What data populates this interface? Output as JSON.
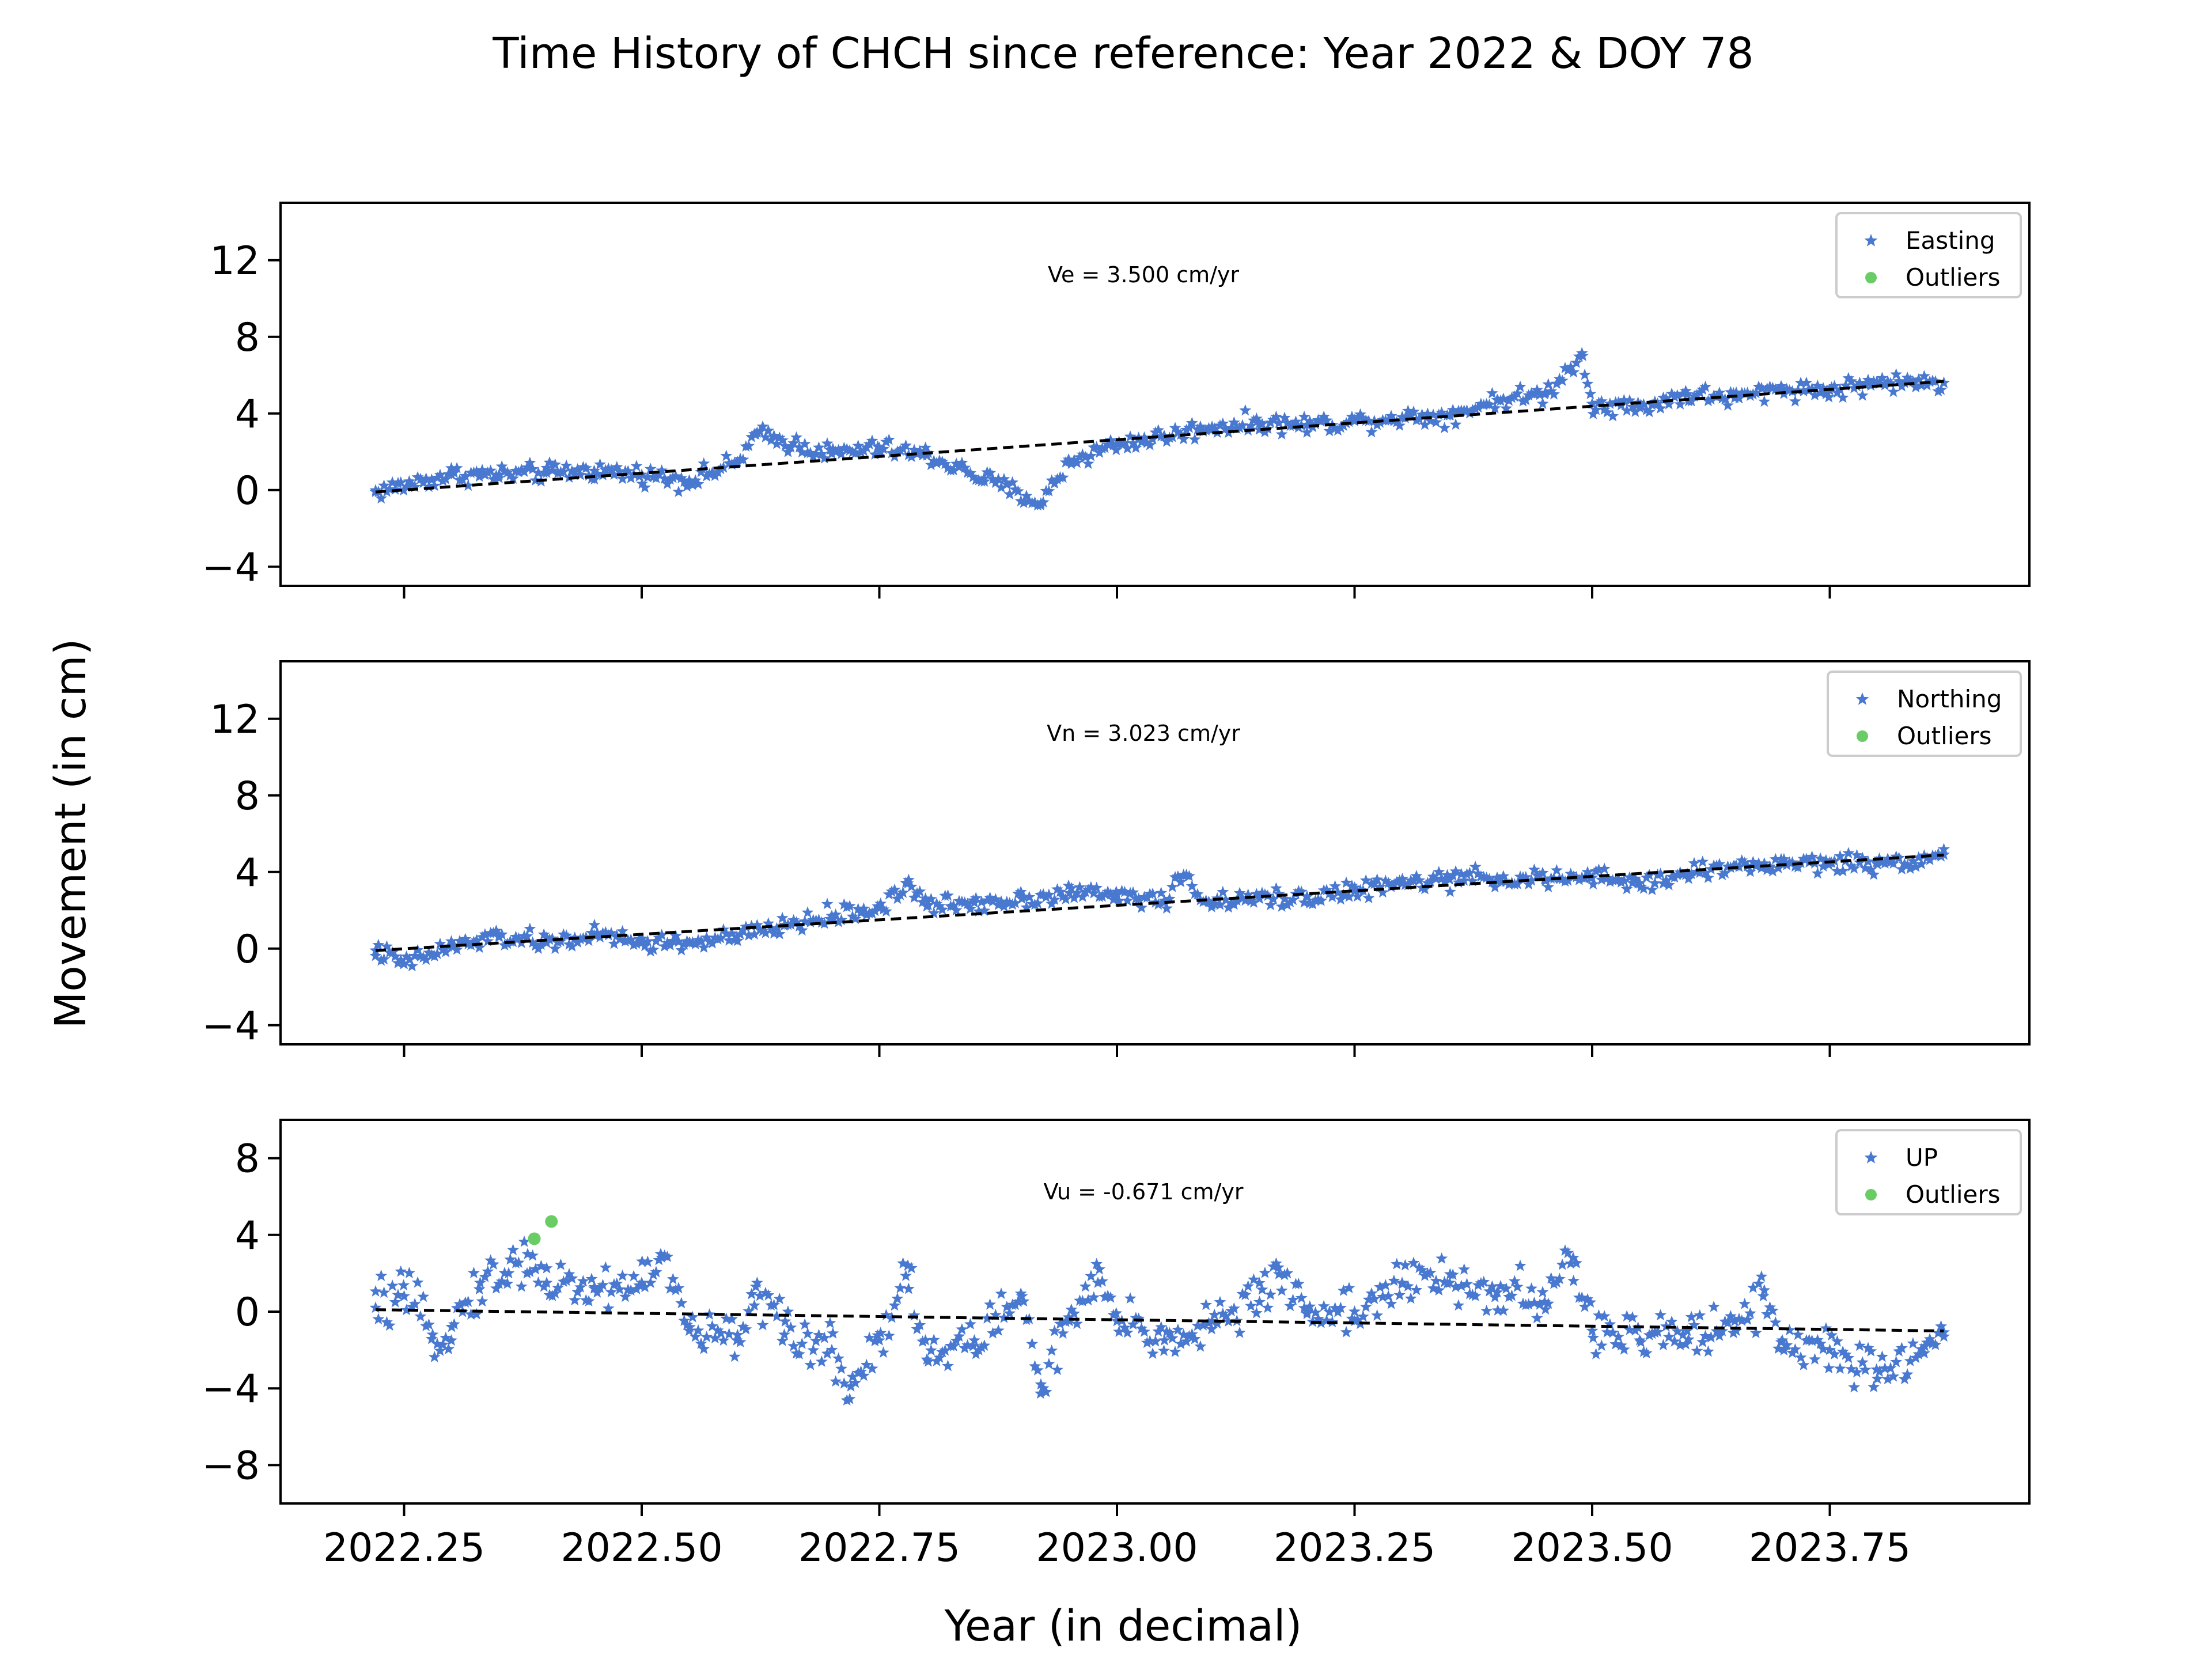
{
  "figure": {
    "title": "Time History of CHCH since reference: Year 2022 & DOY 78",
    "xlabel": "Year (in decimal)",
    "ylabel": "Movement (in cm)"
  },
  "chart_data": [
    {
      "type": "scatter",
      "panel": "top",
      "xlim": [
        2022.12,
        2023.96
      ],
      "ylim": [
        -5,
        15
      ],
      "x_ticks": [
        2022.25,
        2022.5,
        2022.75,
        2023.0,
        2023.25,
        2023.5,
        2023.75
      ],
      "x_tick_labels_shown": false,
      "y_ticks": [
        -4,
        0,
        4,
        8,
        12
      ],
      "y_tick_labels": [
        "−4",
        "0",
        "4",
        "8",
        "12"
      ],
      "annotation": "Ve =  3.500 cm/yr",
      "legend_position": "upper right",
      "series": [
        {
          "name": "Easting",
          "marker": "star",
          "color": "#4878cf",
          "trend": {
            "slope": 3.5,
            "x0": 2022.22,
            "y0": -0.1
          },
          "approx_points": [
            [
              2022.22,
              -0.1
            ],
            [
              2022.3,
              0.8
            ],
            [
              2022.35,
              0.8
            ],
            [
              2022.4,
              0.9
            ],
            [
              2022.45,
              1.0
            ],
            [
              2022.5,
              0.8
            ],
            [
              2022.55,
              0.5
            ],
            [
              2022.6,
              1.4
            ],
            [
              2022.62,
              2.9
            ],
            [
              2022.7,
              1.9
            ],
            [
              2022.75,
              2.2
            ],
            [
              2022.8,
              1.8
            ],
            [
              2022.86,
              0.6
            ],
            [
              2022.92,
              -0.7
            ],
            [
              2022.95,
              1.5
            ],
            [
              2023.0,
              2.4
            ],
            [
              2023.05,
              2.8
            ],
            [
              2023.1,
              3.3
            ],
            [
              2023.15,
              3.5
            ],
            [
              2023.2,
              3.4
            ],
            [
              2023.25,
              3.6
            ],
            [
              2023.3,
              3.8
            ],
            [
              2023.35,
              3.9
            ],
            [
              2023.4,
              4.7
            ],
            [
              2023.45,
              5.0
            ],
            [
              2023.49,
              7.0
            ],
            [
              2023.5,
              4.5
            ],
            [
              2023.55,
              4.3
            ],
            [
              2023.6,
              5.0
            ],
            [
              2023.65,
              4.8
            ],
            [
              2023.7,
              5.3
            ],
            [
              2023.75,
              5.2
            ],
            [
              2023.8,
              5.6
            ],
            [
              2023.87,
              5.6
            ]
          ]
        },
        {
          "name": "Outliers",
          "marker": "dot",
          "color": "#6acc65",
          "points": []
        }
      ]
    },
    {
      "type": "scatter",
      "panel": "middle",
      "xlim": [
        2022.12,
        2023.96
      ],
      "ylim": [
        -5,
        15
      ],
      "x_ticks": [
        2022.25,
        2022.5,
        2022.75,
        2023.0,
        2023.25,
        2023.5,
        2023.75
      ],
      "x_tick_labels_shown": false,
      "y_ticks": [
        -4,
        0,
        4,
        8,
        12
      ],
      "y_tick_labels": [
        "−4",
        "0",
        "4",
        "8",
        "12"
      ],
      "annotation": "Vn =  3.023 cm/yr",
      "legend_position": "upper right",
      "series": [
        {
          "name": "Northing",
          "marker": "star",
          "color": "#4878cf",
          "trend": {
            "slope": 3.023,
            "x0": 2022.22,
            "y0": -0.1
          },
          "approx_points": [
            [
              2022.22,
              -0.1
            ],
            [
              2022.25,
              -0.8
            ],
            [
              2022.3,
              0.1
            ],
            [
              2022.35,
              0.6
            ],
            [
              2022.4,
              0.3
            ],
            [
              2022.45,
              0.7
            ],
            [
              2022.5,
              0.3
            ],
            [
              2022.55,
              0.3
            ],
            [
              2022.6,
              0.6
            ],
            [
              2022.65,
              1.2
            ],
            [
              2022.7,
              1.7
            ],
            [
              2022.75,
              2.1
            ],
            [
              2022.78,
              3.4
            ],
            [
              2022.8,
              2.2
            ],
            [
              2022.85,
              2.4
            ],
            [
              2022.9,
              2.6
            ],
            [
              2022.95,
              2.9
            ],
            [
              2023.0,
              2.8
            ],
            [
              2023.05,
              2.5
            ],
            [
              2023.07,
              3.8
            ],
            [
              2023.1,
              2.3
            ],
            [
              2023.15,
              2.6
            ],
            [
              2023.2,
              2.7
            ],
            [
              2023.25,
              3.0
            ],
            [
              2023.3,
              3.4
            ],
            [
              2023.35,
              3.6
            ],
            [
              2023.4,
              3.7
            ],
            [
              2023.45,
              3.6
            ],
            [
              2023.5,
              3.7
            ],
            [
              2023.55,
              3.4
            ],
            [
              2023.6,
              3.9
            ],
            [
              2023.65,
              4.3
            ],
            [
              2023.7,
              4.4
            ],
            [
              2023.75,
              4.5
            ],
            [
              2023.8,
              4.4
            ],
            [
              2023.87,
              4.9
            ]
          ]
        },
        {
          "name": "Outliers",
          "marker": "dot",
          "color": "#6acc65",
          "points": []
        }
      ]
    },
    {
      "type": "scatter",
      "panel": "bottom",
      "xlim": [
        2022.12,
        2023.96
      ],
      "ylim": [
        -10,
        10
      ],
      "x_ticks": [
        2022.25,
        2022.5,
        2022.75,
        2023.0,
        2023.25,
        2023.5,
        2023.75
      ],
      "x_tick_labels": [
        "2022.25",
        "2022.50",
        "2022.75",
        "2023.00",
        "2023.25",
        "2023.50",
        "2023.75"
      ],
      "x_tick_labels_shown": true,
      "y_ticks": [
        -8,
        -4,
        0,
        4,
        8
      ],
      "y_tick_labels": [
        "−8",
        "−4",
        "0",
        "4",
        "8"
      ],
      "annotation": "Vu = -0.671 cm/yr",
      "legend_position": "upper right",
      "series": [
        {
          "name": "UP",
          "marker": "star",
          "color": "#4878cf",
          "trend": {
            "slope": -0.671,
            "x0": 2022.22,
            "y0": 0.1
          },
          "approx_points": [
            [
              2022.22,
              0.2
            ],
            [
              2022.25,
              0.8
            ],
            [
              2022.28,
              -1.2
            ],
            [
              2022.3,
              -0.8
            ],
            [
              2022.33,
              1.5
            ],
            [
              2022.36,
              2.0
            ],
            [
              2022.38,
              3.0
            ],
            [
              2022.4,
              1.5
            ],
            [
              2022.45,
              1.2
            ],
            [
              2022.5,
              1.5
            ],
            [
              2022.52,
              3.0
            ],
            [
              2022.55,
              -1.0
            ],
            [
              2022.6,
              -1.5
            ],
            [
              2022.62,
              1.3
            ],
            [
              2022.65,
              -1.2
            ],
            [
              2022.7,
              -2.0
            ],
            [
              2022.72,
              -3.9
            ],
            [
              2022.75,
              -1.5
            ],
            [
              2022.78,
              2.4
            ],
            [
              2022.8,
              -2.5
            ],
            [
              2022.85,
              -1.5
            ],
            [
              2022.9,
              0.8
            ],
            [
              2022.92,
              -3.8
            ],
            [
              2022.95,
              -0.5
            ],
            [
              2022.98,
              1.5
            ],
            [
              2023.0,
              -0.5
            ],
            [
              2023.05,
              -1.5
            ],
            [
              2023.1,
              -0.5
            ],
            [
              2023.15,
              0.5
            ],
            [
              2023.17,
              2.3
            ],
            [
              2023.2,
              0.0
            ],
            [
              2023.25,
              0.0
            ],
            [
              2023.3,
              1.5
            ],
            [
              2023.35,
              1.5
            ],
            [
              2023.4,
              1.0
            ],
            [
              2023.45,
              0.5
            ],
            [
              2023.48,
              2.8
            ],
            [
              2023.5,
              -1.0
            ],
            [
              2023.55,
              -1.5
            ],
            [
              2023.6,
              -1.0
            ],
            [
              2023.65,
              -0.5
            ],
            [
              2023.68,
              0.8
            ],
            [
              2023.7,
              -1.5
            ],
            [
              2023.75,
              -2.0
            ],
            [
              2023.8,
              -3.5
            ],
            [
              2023.85,
              -1.8
            ],
            [
              2023.87,
              -1.3
            ]
          ]
        },
        {
          "name": "Outliers",
          "marker": "dot",
          "color": "#6acc65",
          "points": [
            [
              2022.387,
              3.8
            ],
            [
              2022.405,
              4.7
            ]
          ]
        }
      ]
    }
  ]
}
